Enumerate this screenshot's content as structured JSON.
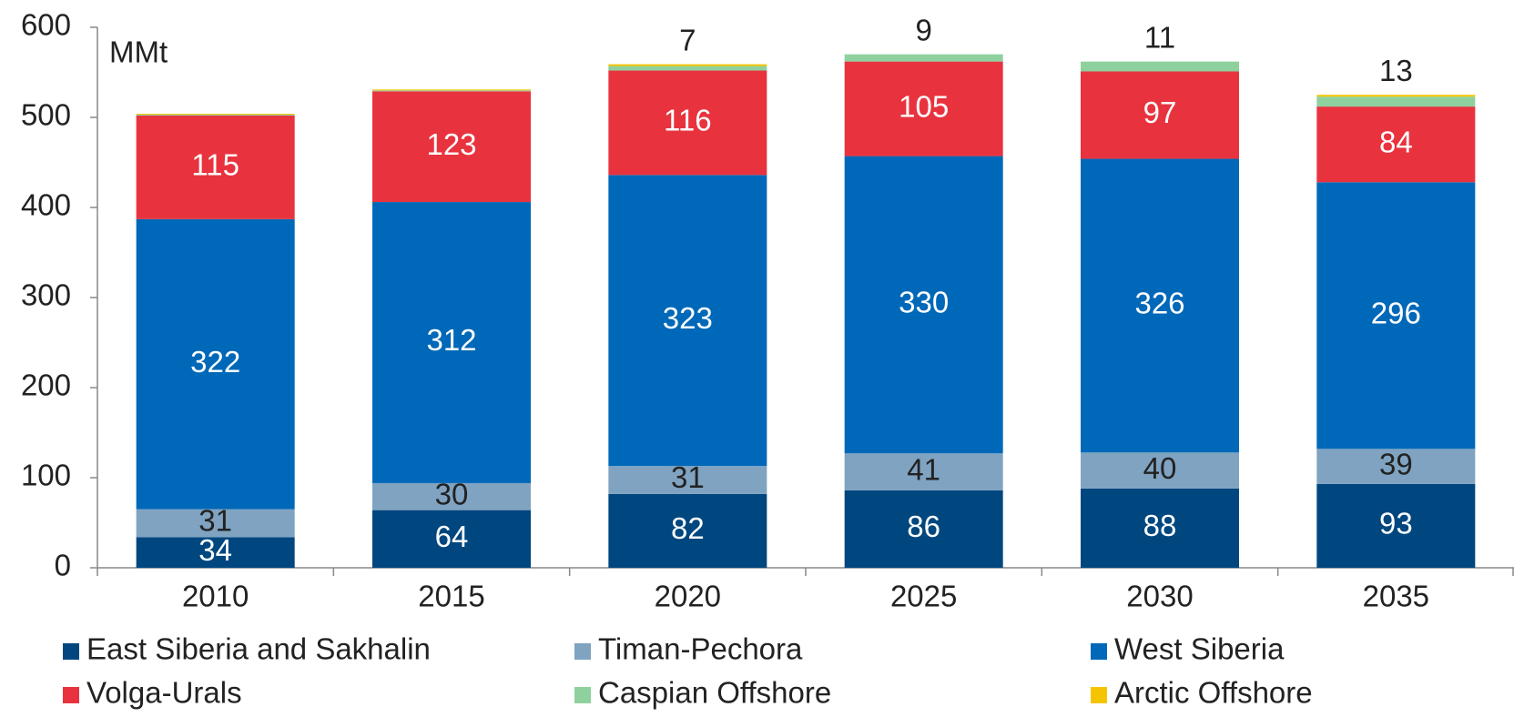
{
  "chart_data": {
    "type": "stacked_bar",
    "y_label": "MMt",
    "categories": [
      "2010",
      "2015",
      "2020",
      "2025",
      "2030",
      "2035"
    ],
    "series": [
      {
        "name": "East Siberia and Sakhalin",
        "color": "#00467f",
        "values": [
          34,
          64,
          82,
          86,
          88,
          93
        ]
      },
      {
        "name": "Timan-Pechora",
        "color": "#7fa3c1",
        "values": [
          31,
          30,
          31,
          41,
          40,
          39
        ]
      },
      {
        "name": "West Siberia",
        "color": "#0068b8",
        "values": [
          322,
          312,
          323,
          330,
          326,
          296
        ]
      },
      {
        "name": "Volga-Urals",
        "color": "#e8333f",
        "values": [
          115,
          123,
          116,
          105,
          97,
          84
        ]
      },
      {
        "name": "Caspian Offshore",
        "color": "#8fd19e",
        "values": [
          1,
          1,
          5,
          8,
          11,
          11
        ]
      },
      {
        "name": "Arctic Offshore",
        "color": "#f5c400",
        "values": [
          1,
          1,
          2,
          0,
          0,
          2
        ]
      }
    ],
    "annotations": [
      null,
      null,
      "7",
      "9",
      "11",
      "13"
    ],
    "ylim": [
      0,
      600
    ],
    "yticks": [
      0,
      100,
      200,
      300,
      400,
      500,
      600
    ]
  }
}
